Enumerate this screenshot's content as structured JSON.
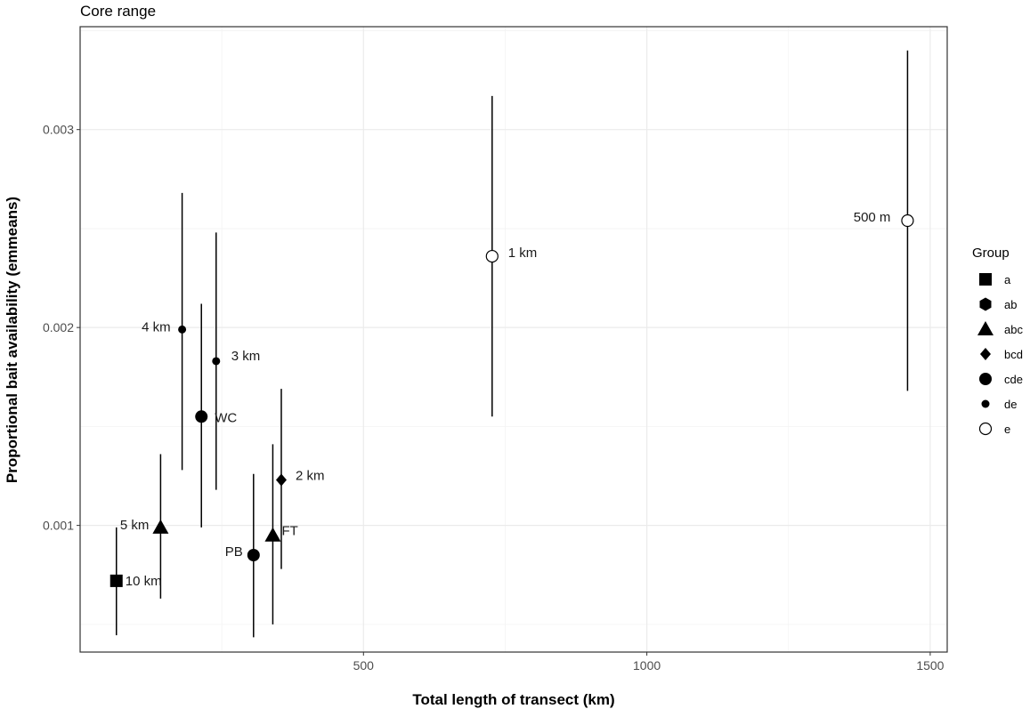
{
  "chart_data": {
    "type": "scatter",
    "title": "Core range",
    "xlabel": "Total length of transect (km)",
    "ylabel": "Proportional bait availability (emmeans)",
    "xlim": [
      0,
      1530
    ],
    "ylim": [
      0.00036,
      0.00352
    ],
    "x_ticks": [
      500,
      1000,
      1500
    ],
    "x_tick_labels": [
      "500",
      "1000",
      "1500"
    ],
    "y_ticks": [
      0.001,
      0.002,
      0.003
    ],
    "y_tick_labels": [
      "0.001",
      "0.002",
      "0.003"
    ],
    "grid": true,
    "legend": {
      "title": "Group",
      "placement": "right",
      "items": [
        {
          "label": "a",
          "shape": "square"
        },
        {
          "label": "ab",
          "shape": "hexagon"
        },
        {
          "label": "abc",
          "shape": "triangle"
        },
        {
          "label": "bcd",
          "shape": "diamond"
        },
        {
          "label": "cde",
          "shape": "circle"
        },
        {
          "label": "de",
          "shape": "small-circle"
        },
        {
          "label": "e",
          "shape": "open-circle"
        }
      ]
    },
    "points": [
      {
        "label": "10 km",
        "group": "a",
        "x": 64,
        "y": 0.00072,
        "lower": 0.000445,
        "upper": 0.00099
      },
      {
        "label": "5 km",
        "group": "abc",
        "x": 142,
        "y": 0.00099,
        "lower": 0.00063,
        "upper": 0.00136
      },
      {
        "label": "4 km",
        "group": "de",
        "x": 180,
        "y": 0.00199,
        "lower": 0.00128,
        "upper": 0.00268
      },
      {
        "label": "WC",
        "group": "cde",
        "x": 214,
        "y": 0.00155,
        "lower": 0.00099,
        "upper": 0.00212
      },
      {
        "label": "3 km",
        "group": "de",
        "x": 240,
        "y": 0.00183,
        "lower": 0.00118,
        "upper": 0.00248
      },
      {
        "label": "PB",
        "group": "cde",
        "x": 306,
        "y": 0.00085,
        "lower": 0.000435,
        "upper": 0.00126
      },
      {
        "label": "FT",
        "group": "abc",
        "x": 340,
        "y": 0.00095,
        "lower": 0.0005,
        "upper": 0.00141
      },
      {
        "label": "2 km",
        "group": "bcd",
        "x": 355,
        "y": 0.00123,
        "lower": 0.00078,
        "upper": 0.00169
      },
      {
        "label": "1 km",
        "group": "e",
        "x": 727,
        "y": 0.00236,
        "lower": 0.00155,
        "upper": 0.00317
      },
      {
        "label": "500 m",
        "group": "e",
        "x": 1460,
        "y": 0.00254,
        "lower": 0.00168,
        "upper": 0.0034
      }
    ]
  }
}
